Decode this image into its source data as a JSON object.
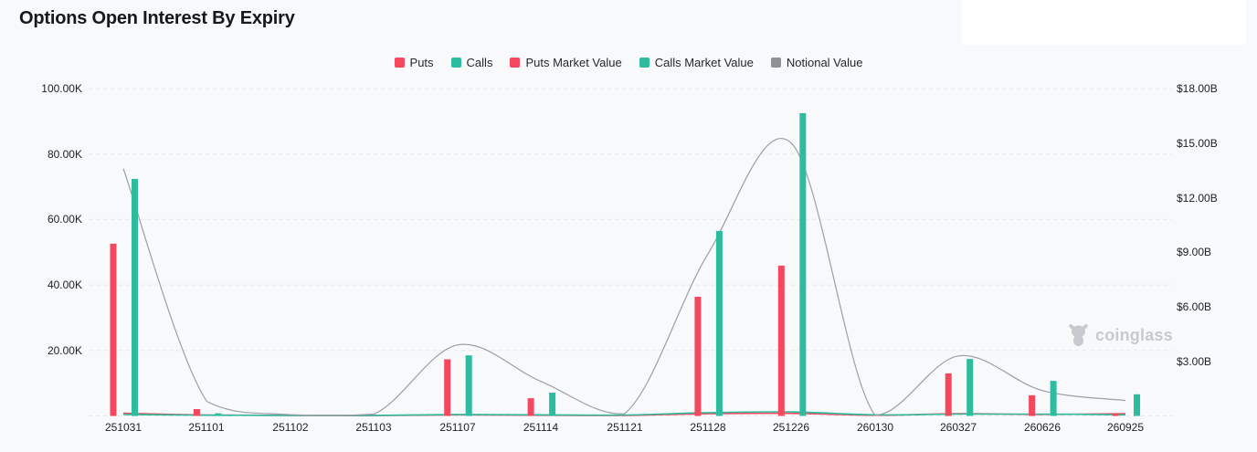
{
  "title": "Options Open Interest By Expiry",
  "watermark": {
    "text": "coinglass"
  },
  "colors": {
    "puts": "#f5475d",
    "calls": "#2ebc9e",
    "notional": "#9ba0a6",
    "grid": "#e7e8ea",
    "background": "#f8f9fa",
    "text": "#1d1f23",
    "watermark": "#c6c9cd"
  },
  "legend": [
    {
      "label": "Puts",
      "color": "#f5475d"
    },
    {
      "label": "Calls",
      "color": "#2ebc9e"
    },
    {
      "label": "Puts Market Value",
      "color": "#f5475d"
    },
    {
      "label": "Calls Market Value",
      "color": "#2ebc9e"
    },
    {
      "label": "Notional Value",
      "color": "#8e9196"
    }
  ],
  "chart_data": {
    "type": "bar",
    "title": "Options Open Interest By Expiry",
    "categories": [
      "251031",
      "251101",
      "251102",
      "251103",
      "251107",
      "251114",
      "251121",
      "251128",
      "251226",
      "260130",
      "260327",
      "260626",
      "260925"
    ],
    "series": [
      {
        "name": "Puts",
        "kind": "bar",
        "axis": "left",
        "unit": "K contracts",
        "color": "#f5475d",
        "values": [
          52.6,
          2.1,
          0,
          0,
          17.3,
          5.4,
          0,
          36.4,
          45.9,
          0,
          13.0,
          6.3,
          0.8
        ]
      },
      {
        "name": "Calls",
        "kind": "bar",
        "axis": "left",
        "unit": "K contracts",
        "color": "#2ebc9e",
        "values": [
          72.4,
          0.8,
          0,
          0,
          18.5,
          7.1,
          0,
          56.5,
          92.5,
          0,
          17.4,
          10.7,
          6.6
        ]
      },
      {
        "name": "Puts Market Value",
        "kind": "line",
        "axis": "right",
        "unit": "$B",
        "color": "#f5475d",
        "values": [
          0.15,
          0.05,
          0.03,
          0.02,
          0.06,
          0.04,
          0.03,
          0.12,
          0.14,
          0.04,
          0.12,
          0.08,
          0.12
        ]
      },
      {
        "name": "Calls Market Value",
        "kind": "line",
        "axis": "right",
        "unit": "$B",
        "color": "#2ebc9e",
        "values": [
          0.08,
          0.04,
          0.03,
          0.03,
          0.08,
          0.06,
          0.05,
          0.18,
          0.22,
          0.06,
          0.1,
          0.1,
          0.06
        ]
      },
      {
        "name": "Notional Value",
        "kind": "line",
        "axis": "right",
        "unit": "$B",
        "color": "#9ba0a6",
        "values": [
          13.6,
          0.8,
          0.07,
          0.1,
          3.9,
          1.9,
          0.12,
          8.9,
          15.0,
          0.05,
          3.3,
          1.4,
          0.85
        ]
      }
    ],
    "left_axis": {
      "min": 0,
      "max": 100,
      "unit": "K",
      "ticks": [
        {
          "label": "100.00K",
          "value": 100
        },
        {
          "label": "80.00K",
          "value": 80
        },
        {
          "label": "60.00K",
          "value": 60
        },
        {
          "label": "40.00K",
          "value": 40
        },
        {
          "label": "20.00K",
          "value": 20
        }
      ]
    },
    "right_axis": {
      "min": 0,
      "max": 18,
      "unit": "$B",
      "ticks": [
        {
          "label": "$18.00B",
          "value": 18
        },
        {
          "label": "$15.00B",
          "value": 15
        },
        {
          "label": "$12.00B",
          "value": 12
        },
        {
          "label": "$9.00B",
          "value": 9
        },
        {
          "label": "$6.00B",
          "value": 6
        },
        {
          "label": "$3.00B",
          "value": 3
        }
      ]
    },
    "grid": "horizontal-dashed",
    "legend_position": "top-center"
  }
}
